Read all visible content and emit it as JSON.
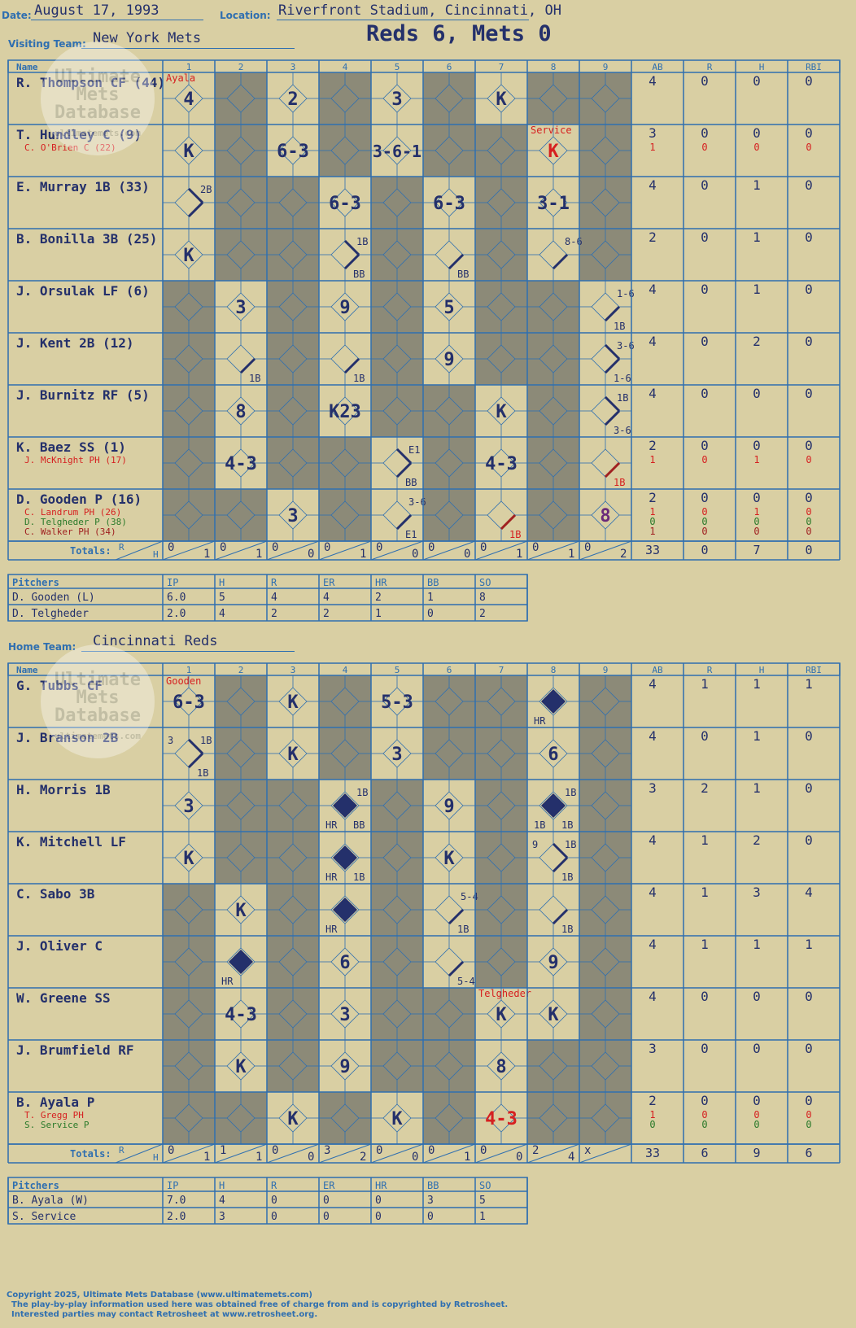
{
  "header": {
    "date_label": "Date:",
    "date": "August 17, 1993",
    "location_label": "Location:",
    "location": "Riverfront Stadium, Cincinnati, OH",
    "score": "Reds 6, Mets 0",
    "visiting_label": "Visiting Team:",
    "visiting_team": "New York Mets",
    "home_label": "Home Team:",
    "home_team": "Cincinnati Reds"
  },
  "columns": {
    "name": "Name",
    "innings": [
      "1",
      "2",
      "3",
      "4",
      "5",
      "6",
      "7",
      "8",
      "9"
    ],
    "stats": [
      "AB",
      "R",
      "H",
      "RBI"
    ]
  },
  "totals_label": "Totals:",
  "rh_labels": [
    "R",
    "H"
  ],
  "watermark": [
    "Ultimate",
    "Mets",
    "Database",
    "ultimatemets.com"
  ],
  "colors": {
    "paper": "#d9cfa3",
    "shade": "#8c8a78",
    "grid": "#2f6fb0",
    "ink": "#24306b",
    "red": "#d62020",
    "green": "#2a7a2a",
    "darkred": "#a02020"
  },
  "visitors": {
    "players": [
      {
        "name": "R. Thompson CF (44)",
        "ab": "4",
        "r": "0",
        "h": "0",
        "rbi": "0"
      },
      {
        "name": "T. Hundley C (9)",
        "ab": "3",
        "r": "0",
        "h": "0",
        "rbi": "0",
        "subs": [
          {
            "name": "C. O'Brien C (22)",
            "color": "red",
            "ab": "1",
            "r": "0",
            "h": "0",
            "rbi": "0"
          }
        ]
      },
      {
        "name": "E. Murray 1B (33)",
        "ab": "4",
        "r": "0",
        "h": "1",
        "rbi": "0"
      },
      {
        "name": "B. Bonilla 3B (25)",
        "ab": "2",
        "r": "0",
        "h": "1",
        "rbi": "0"
      },
      {
        "name": "J. Orsulak LF (6)",
        "ab": "4",
        "r": "0",
        "h": "1",
        "rbi": "0"
      },
      {
        "name": "J. Kent 2B (12)",
        "ab": "4",
        "r": "0",
        "h": "2",
        "rbi": "0"
      },
      {
        "name": "J. Burnitz RF (5)",
        "ab": "4",
        "r": "0",
        "h": "0",
        "rbi": "0"
      },
      {
        "name": "K. Baez SS (1)",
        "ab": "2",
        "r": "0",
        "h": "0",
        "rbi": "0",
        "subs": [
          {
            "name": "J. McKnight PH (17)",
            "color": "red",
            "ab": "1",
            "r": "0",
            "h": "1",
            "rbi": "0"
          }
        ]
      },
      {
        "name": "D. Gooden P (16)",
        "ab": "2",
        "r": "0",
        "h": "0",
        "rbi": "0",
        "subs": [
          {
            "name": "C. Landrum PH (26)",
            "color": "red",
            "ab": "1",
            "r": "0",
            "h": "1",
            "rbi": "0"
          },
          {
            "name": "D. Telgheder P (38)",
            "color": "green",
            "ab": "0",
            "r": "0",
            "h": "0",
            "rbi": "0"
          },
          {
            "name": "C. Walker PH (34)",
            "color": "darkred",
            "ab": "1",
            "r": "0",
            "h": "0",
            "rbi": "0"
          }
        ]
      }
    ],
    "plays": [
      {
        "row": 0,
        "inn": 1,
        "t": "4"
      },
      {
        "row": 0,
        "inn": 3,
        "t": "2"
      },
      {
        "row": 0,
        "inn": 5,
        "t": "3"
      },
      {
        "row": 0,
        "inn": 7,
        "t": "K"
      },
      {
        "row": 1,
        "inn": 1,
        "t": "K"
      },
      {
        "row": 1,
        "inn": 3,
        "t": "6-3"
      },
      {
        "row": 1,
        "inn": 5,
        "t": "3-6-1"
      },
      {
        "row": 1,
        "inn": 8,
        "t": "K",
        "c": "red"
      },
      {
        "row": 2,
        "inn": 1,
        "t": "",
        "lines": "2",
        "tr": "2B"
      },
      {
        "row": 2,
        "inn": 4,
        "t": "6-3"
      },
      {
        "row": 2,
        "inn": 6,
        "t": "6-3"
      },
      {
        "row": 2,
        "inn": 8,
        "t": "3-1"
      },
      {
        "row": 3,
        "inn": 1,
        "t": "K"
      },
      {
        "row": 3,
        "inn": 4,
        "t": "",
        "lines": "2",
        "tr": "1B",
        "br": "BB"
      },
      {
        "row": 3,
        "inn": 6,
        "t": "",
        "lines": "1",
        "br": "BB"
      },
      {
        "row": 3,
        "inn": 8,
        "t": "",
        "lines": "1",
        "tr": "8-6"
      },
      {
        "row": 4,
        "inn": 2,
        "t": "3"
      },
      {
        "row": 4,
        "inn": 4,
        "t": "9"
      },
      {
        "row": 4,
        "inn": 6,
        "t": "5"
      },
      {
        "row": 4,
        "inn": 9,
        "t": "",
        "lines": "1",
        "tr": "1-6",
        "br": "1B"
      },
      {
        "row": 5,
        "inn": 2,
        "t": "",
        "lines": "1",
        "br": "1B"
      },
      {
        "row": 5,
        "inn": 4,
        "t": "",
        "lines": "1",
        "br": "1B"
      },
      {
        "row": 5,
        "inn": 6,
        "t": "9"
      },
      {
        "row": 5,
        "inn": 9,
        "t": "",
        "lines": "2",
        "tr": "3-6",
        "br": "1-6"
      },
      {
        "row": 6,
        "inn": 2,
        "t": "8"
      },
      {
        "row": 6,
        "inn": 4,
        "t": "K23"
      },
      {
        "row": 6,
        "inn": 7,
        "t": "K"
      },
      {
        "row": 6,
        "inn": 9,
        "t": "",
        "lines": "2",
        "tr": "1B",
        "br": "3-6"
      },
      {
        "row": 7,
        "inn": 2,
        "t": "4-3"
      },
      {
        "row": 7,
        "inn": 5,
        "t": "",
        "lines": "2",
        "tr": "E1",
        "br": "BB"
      },
      {
        "row": 7,
        "inn": 7,
        "t": "4-3"
      },
      {
        "row": 7,
        "inn": 9,
        "t": "",
        "lines": "1r",
        "br": "1B",
        "brc": "red"
      },
      {
        "row": 8,
        "inn": 3,
        "t": "3"
      },
      {
        "row": 8,
        "inn": 5,
        "t": "",
        "lines": "1",
        "tr": "3-6",
        "br": "E1"
      },
      {
        "row": 8,
        "inn": 7,
        "t": "",
        "lines": "1r",
        "br": "1B",
        "brc": "red"
      },
      {
        "row": 8,
        "inn": 9,
        "t": "8",
        "c": "purple"
      }
    ],
    "pitcher_notes": [
      {
        "row": 0,
        "inn": 1,
        "t": "Ayala"
      },
      {
        "row": 1,
        "inn": 8,
        "t": "Service"
      }
    ],
    "totals": [
      [
        "0",
        "1"
      ],
      [
        "0",
        "1"
      ],
      [
        "0",
        "0"
      ],
      [
        "0",
        "1"
      ],
      [
        "0",
        "0"
      ],
      [
        "0",
        "0"
      ],
      [
        "0",
        "1"
      ],
      [
        "0",
        "1"
      ],
      [
        "0",
        "2"
      ]
    ],
    "total_stats": [
      "33",
      "0",
      "7",
      "0"
    ],
    "pitchers": {
      "headers": [
        "Pitchers",
        "IP",
        "H",
        "R",
        "ER",
        "HR",
        "BB",
        "SO"
      ],
      "rows": [
        [
          "D. Gooden (L)",
          "6.0",
          "5",
          "4",
          "4",
          "2",
          "1",
          "8"
        ],
        [
          "D. Telgheder",
          "2.0",
          "4",
          "2",
          "2",
          "1",
          "0",
          "2"
        ]
      ]
    }
  },
  "home": {
    "players": [
      {
        "name": "G. Tubbs CF",
        "ab": "4",
        "r": "1",
        "h": "1",
        "rbi": "1"
      },
      {
        "name": "J. Branson 2B",
        "ab": "4",
        "r": "0",
        "h": "1",
        "rbi": "0"
      },
      {
        "name": "H. Morris 1B",
        "ab": "3",
        "r": "2",
        "h": "1",
        "rbi": "0"
      },
      {
        "name": "K. Mitchell LF",
        "ab": "4",
        "r": "1",
        "h": "2",
        "rbi": "0"
      },
      {
        "name": "C. Sabo 3B",
        "ab": "4",
        "r": "1",
        "h": "3",
        "rbi": "4"
      },
      {
        "name": "J. Oliver C",
        "ab": "4",
        "r": "1",
        "h": "1",
        "rbi": "1"
      },
      {
        "name": "W. Greene SS",
        "ab": "4",
        "r": "0",
        "h": "0",
        "rbi": "0"
      },
      {
        "name": "J. Brumfield RF",
        "ab": "3",
        "r": "0",
        "h": "0",
        "rbi": "0"
      },
      {
        "name": "B. Ayala P",
        "ab": "2",
        "r": "0",
        "h": "0",
        "rbi": "0",
        "subs": [
          {
            "name": "T. Gregg PH",
            "color": "red",
            "ab": "1",
            "r": "0",
            "h": "0",
            "rbi": "0"
          },
          {
            "name": "S. Service P",
            "color": "green",
            "ab": "0",
            "r": "0",
            "h": "0",
            "rbi": "0"
          }
        ]
      }
    ],
    "plays": [
      {
        "row": 0,
        "inn": 1,
        "t": "6-3"
      },
      {
        "row": 0,
        "inn": 3,
        "t": "K"
      },
      {
        "row": 0,
        "inn": 5,
        "t": "5-3"
      },
      {
        "row": 0,
        "inn": 8,
        "t": "",
        "fill": true,
        "bl": "HR"
      },
      {
        "row": 1,
        "inn": 1,
        "t": "",
        "lines": "2",
        "tl": "3",
        "tr": "1B",
        "br": "1B"
      },
      {
        "row": 1,
        "inn": 3,
        "t": "K"
      },
      {
        "row": 1,
        "inn": 5,
        "t": "3"
      },
      {
        "row": 1,
        "inn": 8,
        "t": "6"
      },
      {
        "row": 2,
        "inn": 1,
        "t": "3"
      },
      {
        "row": 2,
        "inn": 4,
        "t": "",
        "fill": true,
        "tr": "1B",
        "bl": "HR",
        "br": "BB"
      },
      {
        "row": 2,
        "inn": 6,
        "t": "9"
      },
      {
        "row": 2,
        "inn": 8,
        "t": "",
        "fill": true,
        "tr": "1B",
        "bl": "1B",
        "br": "1B"
      },
      {
        "row": 3,
        "inn": 1,
        "t": "K"
      },
      {
        "row": 3,
        "inn": 4,
        "t": "",
        "fill": true,
        "bl": "HR",
        "br": "1B"
      },
      {
        "row": 3,
        "inn": 6,
        "t": "K"
      },
      {
        "row": 3,
        "inn": 8,
        "t": "",
        "lines": "2",
        "tl": "9",
        "tr": "1B",
        "br": "1B"
      },
      {
        "row": 4,
        "inn": 2,
        "t": "K"
      },
      {
        "row": 4,
        "inn": 4,
        "t": "",
        "fill": true,
        "bl": "HR"
      },
      {
        "row": 4,
        "inn": 6,
        "t": "",
        "lines": "1",
        "tr": "5-4",
        "br": "1B"
      },
      {
        "row": 4,
        "inn": 8,
        "t": "",
        "lines": "1",
        "br": "1B"
      },
      {
        "row": 5,
        "inn": 2,
        "t": "",
        "fill": true,
        "bl": "HR"
      },
      {
        "row": 5,
        "inn": 4,
        "t": "6"
      },
      {
        "row": 5,
        "inn": 6,
        "t": "",
        "lines": "1",
        "br": "5-4"
      },
      {
        "row": 5,
        "inn": 8,
        "t": "9"
      },
      {
        "row": 6,
        "inn": 2,
        "t": "4-3"
      },
      {
        "row": 6,
        "inn": 4,
        "t": "3"
      },
      {
        "row": 6,
        "inn": 7,
        "t": "K"
      },
      {
        "row": 6,
        "inn": 8,
        "t": "K"
      },
      {
        "row": 7,
        "inn": 2,
        "t": "K"
      },
      {
        "row": 7,
        "inn": 4,
        "t": "9"
      },
      {
        "row": 7,
        "inn": 7,
        "t": "8"
      },
      {
        "row": 8,
        "inn": 3,
        "t": "K"
      },
      {
        "row": 8,
        "inn": 5,
        "t": "K"
      },
      {
        "row": 8,
        "inn": 7,
        "t": "4-3",
        "c": "red"
      }
    ],
    "pitcher_notes": [
      {
        "row": 0,
        "inn": 1,
        "t": "Gooden"
      },
      {
        "row": 6,
        "inn": 7,
        "t": "Telgheder"
      }
    ],
    "totals": [
      [
        "0",
        "1"
      ],
      [
        "1",
        "1"
      ],
      [
        "0",
        "0"
      ],
      [
        "3",
        "2"
      ],
      [
        "0",
        "0"
      ],
      [
        "0",
        "1"
      ],
      [
        "0",
        "0"
      ],
      [
        "2",
        "4"
      ],
      [
        "x",
        ""
      ]
    ],
    "total_stats": [
      "33",
      "6",
      "9",
      "6"
    ],
    "pitchers": {
      "headers": [
        "Pitchers",
        "IP",
        "H",
        "R",
        "ER",
        "HR",
        "BB",
        "SO"
      ],
      "rows": [
        [
          "B. Ayala (W)",
          "7.0",
          "4",
          "0",
          "0",
          "0",
          "3",
          "5"
        ],
        [
          "S. Service",
          "2.0",
          "3",
          "0",
          "0",
          "0",
          "0",
          "1"
        ]
      ]
    }
  },
  "footer": [
    "Copyright 2025, Ultimate Mets Database (www.ultimatemets.com)",
    "The play-by-play information used here was obtained free of charge from and is copyrighted by Retrosheet.",
    "Interested parties may contact Retrosheet at www.retrosheet.org."
  ]
}
